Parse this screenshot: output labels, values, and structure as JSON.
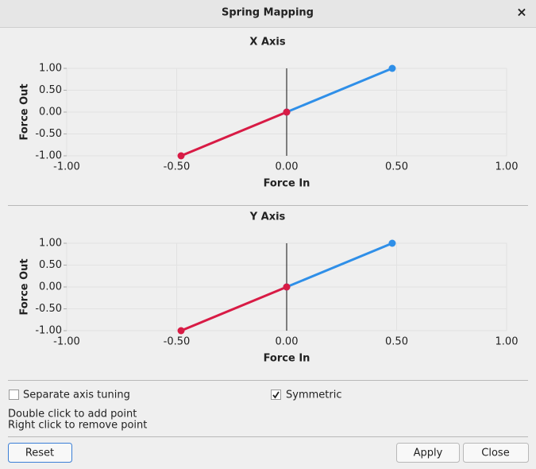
{
  "window": {
    "title": "Spring Mapping",
    "close": "×"
  },
  "chart_data": [
    {
      "type": "line",
      "title": "X Axis",
      "x_label": "Force In",
      "y_label": "Force Out",
      "xlim": [
        -1,
        1
      ],
      "ylim": [
        -1,
        1
      ],
      "xticks": [
        {
          "value": -1,
          "label": "-1.00"
        },
        {
          "value": -0.5,
          "label": "-0.50"
        },
        {
          "value": 0,
          "label": "0.00"
        },
        {
          "value": 0.5,
          "label": "0.50"
        },
        {
          "value": 1,
          "label": "1.00"
        }
      ],
      "yticks": [
        {
          "value": -1,
          "label": "-1.00"
        },
        {
          "value": -0.5,
          "label": "-0.50"
        },
        {
          "value": 0,
          "label": "0.00"
        },
        {
          "value": 0.5,
          "label": "0.50"
        },
        {
          "value": 1,
          "label": "1.00"
        }
      ],
      "grid": true,
      "series": [
        {
          "color": "#2f8fe8",
          "x": [
            0,
            0.48
          ],
          "values": [
            0,
            1
          ]
        },
        {
          "color": "#d81b45",
          "x": [
            -0.48,
            0
          ],
          "values": [
            -1,
            0
          ]
        }
      ]
    },
    {
      "type": "line",
      "title": "Y Axis",
      "x_label": "Force In",
      "y_label": "Force Out",
      "xlim": [
        -1,
        1
      ],
      "ylim": [
        -1,
        1
      ],
      "xticks": [
        {
          "value": -1,
          "label": "-1.00"
        },
        {
          "value": -0.5,
          "label": "-0.50"
        },
        {
          "value": 0,
          "label": "0.00"
        },
        {
          "value": 0.5,
          "label": "0.50"
        },
        {
          "value": 1,
          "label": "1.00"
        }
      ],
      "yticks": [
        {
          "value": -1,
          "label": "-1.00"
        },
        {
          "value": -0.5,
          "label": "-0.50"
        },
        {
          "value": 0,
          "label": "0.00"
        },
        {
          "value": 0.5,
          "label": "0.50"
        },
        {
          "value": 1,
          "label": "1.00"
        }
      ],
      "grid": true,
      "series": [
        {
          "color": "#2f8fe8",
          "x": [
            0,
            0.48
          ],
          "values": [
            0,
            1
          ]
        },
        {
          "color": "#d81b45",
          "x": [
            -0.48,
            0
          ],
          "values": [
            -1,
            0
          ]
        }
      ]
    }
  ],
  "controls": {
    "separate_axis_tuning": {
      "label": "Separate axis tuning",
      "checked": false
    },
    "symmetric": {
      "label": "Symmetric",
      "checked": true
    }
  },
  "hints": [
    "Double click to add point",
    "Right click to remove point"
  ],
  "buttons": [
    "Reset",
    "Apply",
    "Close"
  ]
}
